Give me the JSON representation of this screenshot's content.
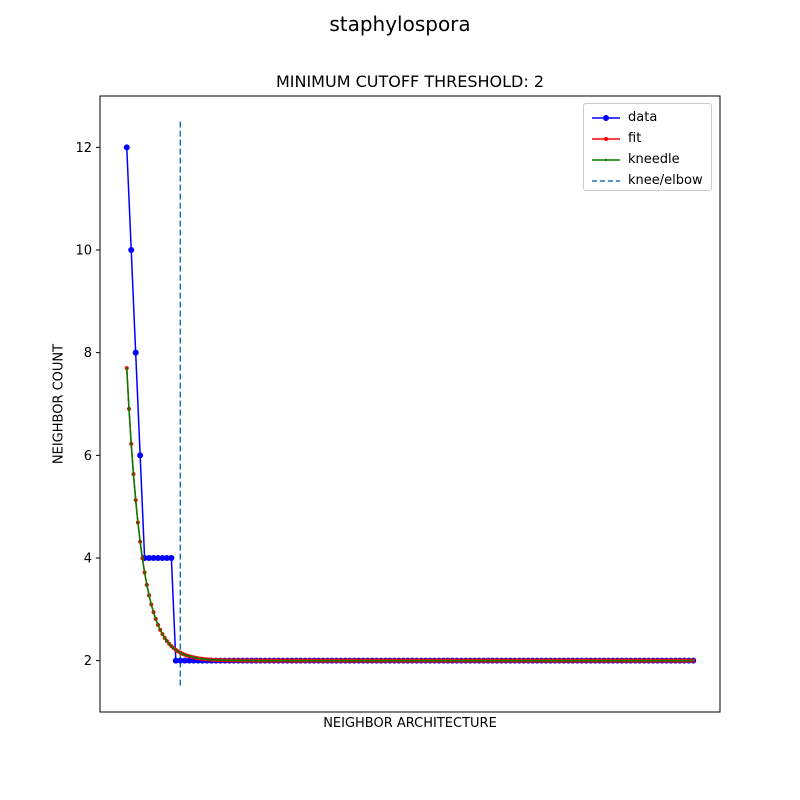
{
  "chart_data": {
    "type": "line",
    "suptitle": "staphylospora",
    "title": "MINIMUM CUTOFF THRESHOLD: 2",
    "xlabel": "NEIGHBOR ARCHITECTURE",
    "ylabel": "NEIGHBOR COUNT",
    "xlim": [
      -1,
      138
    ],
    "ylim": [
      1,
      13
    ],
    "yticks": [
      "2",
      "4",
      "6",
      "8",
      "10",
      "12"
    ],
    "xticks_visible": false,
    "grid": false,
    "legend_position": "top-right",
    "knee_elbow_x": 17,
    "knee_line_ylim": [
      1.5,
      12.5
    ],
    "series": [
      {
        "name": "data",
        "color": "#0000ff",
        "marker": "circle",
        "x": [
          5,
          6,
          7,
          8,
          9,
          10,
          11,
          12,
          13,
          14,
          15,
          16,
          17,
          18,
          19,
          20,
          21,
          22,
          23,
          24,
          25,
          26,
          27,
          28,
          29,
          30,
          31,
          32,
          33,
          34,
          35,
          36,
          37,
          38,
          39,
          40,
          41,
          42,
          43,
          44,
          45,
          46,
          47,
          48,
          49,
          50,
          51,
          52,
          53,
          54,
          55,
          56,
          57,
          58,
          59,
          60,
          61,
          62,
          63,
          64,
          65,
          66,
          67,
          68,
          69,
          70,
          71,
          72,
          73,
          74,
          75,
          76,
          77,
          78,
          79,
          80,
          81,
          82,
          83,
          84,
          85,
          86,
          87,
          88,
          89,
          90,
          91,
          92,
          93,
          94,
          95,
          96,
          97,
          98,
          99,
          100,
          101,
          102,
          103,
          104,
          105,
          106,
          107,
          108,
          109,
          110,
          111,
          112,
          113,
          114,
          115,
          116,
          117,
          118,
          119,
          120,
          121,
          122,
          123,
          124,
          125,
          126,
          127,
          128,
          129,
          130,
          131,
          132
        ],
        "y": [
          12,
          10,
          8,
          6,
          4,
          4,
          4,
          4,
          4,
          4,
          4,
          2,
          2,
          2,
          2,
          2,
          2,
          2,
          2,
          2,
          2,
          2,
          2,
          2,
          2,
          2,
          2,
          2,
          2,
          2,
          2,
          2,
          2,
          2,
          2,
          2,
          2,
          2,
          2,
          2,
          2,
          2,
          2,
          2,
          2,
          2,
          2,
          2,
          2,
          2,
          2,
          2,
          2,
          2,
          2,
          2,
          2,
          2,
          2,
          2,
          2,
          2,
          2,
          2,
          2,
          2,
          2,
          2,
          2,
          2,
          2,
          2,
          2,
          2,
          2,
          2,
          2,
          2,
          2,
          2,
          2,
          2,
          2,
          2,
          2,
          2,
          2,
          2,
          2,
          2,
          2,
          2,
          2,
          2,
          2,
          2,
          2,
          2,
          2,
          2,
          2,
          2,
          2,
          2,
          2,
          2,
          2,
          2,
          2,
          2,
          2,
          2,
          2,
          2,
          2,
          2,
          2,
          2,
          2,
          2,
          2,
          2,
          2,
          2,
          2,
          2,
          2,
          2
        ]
      },
      {
        "name": "fit",
        "color": "#ff0000",
        "marker": "point",
        "x_range": [
          5,
          132
        ],
        "model": "2 + 5.7 * exp(-0.3 * (x - 5))"
      },
      {
        "name": "kneedle",
        "color": "#008000",
        "marker": "point",
        "x_range": [
          5,
          132
        ],
        "model": "2 + 5.7 * exp(-0.3 * (x - 5))"
      },
      {
        "name": "knee/elbow",
        "color": "#1f77b4",
        "style": "dashed"
      }
    ]
  }
}
